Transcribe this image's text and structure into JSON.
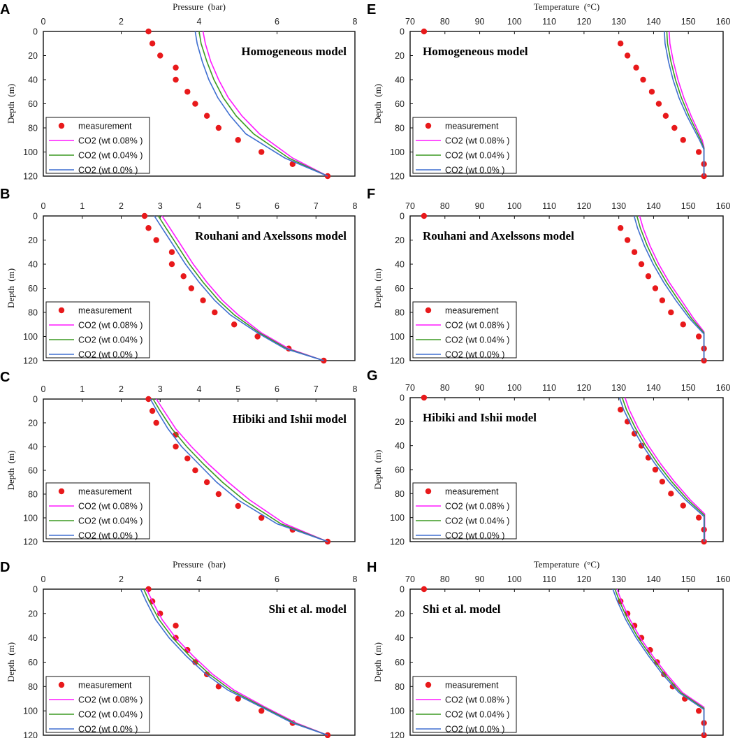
{
  "figure": {
    "series_styles": [
      {
        "name": "measurement",
        "color": "#e8191b",
        "kind": "points"
      },
      {
        "name": "CO2 (wt 0.08% )",
        "color": "#ff19ff",
        "kind": "line"
      },
      {
        "name": "CO2 (wt 0.04% )",
        "color": "#3c9a22",
        "kind": "line"
      },
      {
        "name": "CO2 (wt 0.0% )",
        "color": "#3f6fd1",
        "kind": "line"
      }
    ]
  },
  "chart_data": [
    {
      "panel": "A",
      "type": "scatter+line",
      "title": "Homogeneous model",
      "xlabel": "Pressure  (bar)",
      "ylabel": "Depth  (m)",
      "xlim": [
        0,
        8
      ],
      "xticks": [
        0,
        2,
        4,
        6,
        8
      ],
      "ylim": [
        0,
        120
      ],
      "yticks": [
        0,
        20,
        40,
        60,
        80,
        100,
        120
      ],
      "series": [
        {
          "name": "measurement",
          "x": [
            2.7,
            2.8,
            3.0,
            3.4,
            3.4,
            3.7,
            3.9,
            4.2,
            4.5,
            5.0,
            5.6,
            6.4,
            7.3
          ],
          "y": [
            0,
            10,
            20,
            30,
            40,
            50,
            60,
            70,
            80,
            90,
            100,
            110,
            120
          ]
        },
        {
          "name": "CO2 (wt 0.08% )",
          "x": [
            4.1,
            4.16,
            4.3,
            4.5,
            4.75,
            5.1,
            5.55,
            6.4,
            7.3
          ],
          "y": [
            0,
            10,
            25,
            40,
            55,
            70,
            85,
            105,
            120
          ]
        },
        {
          "name": "CO2 (wt 0.04% )",
          "x": [
            4.0,
            4.05,
            4.2,
            4.38,
            4.62,
            4.95,
            5.4,
            6.3,
            7.3
          ],
          "y": [
            0,
            10,
            25,
            40,
            55,
            70,
            85,
            105,
            120
          ]
        },
        {
          "name": "CO2 (wt 0.0% )",
          "x": [
            3.9,
            3.95,
            4.08,
            4.25,
            4.48,
            4.8,
            5.2,
            6.2,
            7.3
          ],
          "y": [
            0,
            10,
            25,
            40,
            55,
            70,
            85,
            105,
            120
          ]
        }
      ]
    },
    {
      "panel": "B",
      "type": "scatter+line",
      "title": "Rouhani and Axelssons model",
      "xlabel": "",
      "ylabel": "Depth  (m)",
      "xlim": [
        0,
        8
      ],
      "xticks": [
        0,
        1,
        2,
        3,
        4,
        5,
        6,
        7,
        8
      ],
      "ylim": [
        0,
        120
      ],
      "yticks": [
        0,
        20,
        40,
        60,
        80,
        100,
        120
      ],
      "series": [
        {
          "name": "measurement",
          "x": [
            2.6,
            2.7,
            2.9,
            3.3,
            3.3,
            3.6,
            3.8,
            4.1,
            4.4,
            4.9,
            5.5,
            6.3,
            7.2
          ],
          "y": [
            0,
            10,
            20,
            30,
            40,
            50,
            60,
            70,
            80,
            90,
            100,
            110,
            120
          ]
        },
        {
          "name": "CO2 (wt 0.08% )",
          "x": [
            3.05,
            3.25,
            3.55,
            3.85,
            4.2,
            4.6,
            5.0,
            5.6,
            6.3,
            7.2
          ],
          "y": [
            0,
            10,
            25,
            40,
            55,
            70,
            82,
            97,
            110,
            120
          ]
        },
        {
          "name": "CO2 (wt 0.04% )",
          "x": [
            2.95,
            3.15,
            3.45,
            3.75,
            4.1,
            4.5,
            4.9,
            5.55,
            6.25,
            7.2
          ],
          "y": [
            0,
            10,
            25,
            40,
            55,
            70,
            82,
            97,
            110,
            120
          ]
        },
        {
          "name": "CO2 (wt 0.0% )",
          "x": [
            2.85,
            3.05,
            3.35,
            3.65,
            4.0,
            4.4,
            4.8,
            5.5,
            6.2,
            7.2
          ],
          "y": [
            0,
            10,
            25,
            40,
            55,
            70,
            82,
            97,
            110,
            120
          ]
        }
      ]
    },
    {
      "panel": "C",
      "type": "scatter+line",
      "title": "Hibiki and Ishii model",
      "xlabel": "",
      "ylabel": "Depth  (m)",
      "xlim": [
        0,
        8
      ],
      "xticks": [
        0,
        1,
        2,
        3,
        4,
        5,
        6,
        7,
        8
      ],
      "ylim": [
        0,
        120
      ],
      "yticks": [
        0,
        20,
        40,
        60,
        80,
        100,
        120
      ],
      "series": [
        {
          "name": "measurement",
          "x": [
            2.7,
            2.8,
            2.9,
            3.4,
            3.4,
            3.7,
            3.9,
            4.2,
            4.5,
            5.0,
            5.6,
            6.4,
            7.3
          ],
          "y": [
            0,
            10,
            20,
            30,
            40,
            50,
            60,
            70,
            80,
            90,
            100,
            110,
            120
          ]
        },
        {
          "name": "CO2 (wt 0.08% )",
          "x": [
            2.9,
            3.1,
            3.4,
            3.8,
            4.25,
            4.75,
            5.3,
            6.2,
            7.3
          ],
          "y": [
            0,
            10,
            25,
            40,
            55,
            70,
            85,
            105,
            120
          ]
        },
        {
          "name": "CO2 (wt 0.04% )",
          "x": [
            2.82,
            3.0,
            3.3,
            3.68,
            4.12,
            4.6,
            5.15,
            6.1,
            7.3
          ],
          "y": [
            0,
            10,
            25,
            40,
            55,
            70,
            85,
            105,
            120
          ]
        },
        {
          "name": "CO2 (wt 0.0% )",
          "x": [
            2.75,
            2.92,
            3.2,
            3.55,
            4.0,
            4.45,
            5.0,
            6.0,
            7.3
          ],
          "y": [
            0,
            10,
            25,
            40,
            55,
            70,
            85,
            105,
            120
          ]
        }
      ]
    },
    {
      "panel": "D",
      "type": "scatter+line",
      "title": "Shi et al. model",
      "xlabel": "Pressure  (bar)",
      "ylabel": "Depth  (m)",
      "xlim": [
        0,
        8
      ],
      "xticks": [
        0,
        2,
        4,
        6,
        8
      ],
      "ylim": [
        0,
        120
      ],
      "yticks": [
        0,
        20,
        40,
        60,
        80,
        100,
        120
      ],
      "series": [
        {
          "name": "measurement",
          "x": [
            2.7,
            2.8,
            3.0,
            3.4,
            3.4,
            3.7,
            3.9,
            4.2,
            4.5,
            5.0,
            5.6,
            6.4,
            7.3
          ],
          "y": [
            0,
            10,
            20,
            30,
            40,
            50,
            60,
            70,
            80,
            90,
            100,
            110,
            120
          ]
        },
        {
          "name": "CO2 (wt 0.08% )",
          "x": [
            2.65,
            2.8,
            3.05,
            3.4,
            3.85,
            4.35,
            4.9,
            5.7,
            6.5,
            7.3
          ],
          "y": [
            0,
            10,
            25,
            40,
            55,
            70,
            83,
            97,
            110,
            120
          ]
        },
        {
          "name": "CO2 (wt 0.04% )",
          "x": [
            2.58,
            2.72,
            2.97,
            3.32,
            3.76,
            4.27,
            4.82,
            5.65,
            6.45,
            7.3
          ],
          "y": [
            0,
            10,
            25,
            40,
            55,
            70,
            83,
            97,
            110,
            120
          ]
        },
        {
          "name": "CO2 (wt 0.0% )",
          "x": [
            2.5,
            2.64,
            2.88,
            3.23,
            3.67,
            4.18,
            4.74,
            5.6,
            6.4,
            7.3
          ],
          "y": [
            0,
            10,
            25,
            40,
            55,
            70,
            83,
            97,
            110,
            120
          ]
        }
      ]
    },
    {
      "panel": "E",
      "type": "scatter+line",
      "title": "Homogeneous model",
      "xlabel": "Temperature  (°C)",
      "ylabel": "Depth  (m)",
      "xlim": [
        70,
        160
      ],
      "xticks": [
        70,
        80,
        90,
        100,
        110,
        120,
        130,
        140,
        150,
        160
      ],
      "ylim": [
        0,
        120
      ],
      "yticks": [
        0,
        20,
        40,
        60,
        80,
        100,
        120
      ],
      "series": [
        {
          "name": "measurement",
          "x": [
            74,
            130.5,
            132.5,
            135,
            137,
            139.5,
            141.5,
            143.5,
            146,
            148.5,
            153,
            154.5,
            154.5
          ],
          "y": [
            0,
            10,
            20,
            30,
            40,
            50,
            60,
            70,
            80,
            90,
            100,
            110,
            120
          ]
        },
        {
          "name": "CO2 (wt 0.08% )",
          "x": [
            144.5,
            144.7,
            145.7,
            147,
            148.7,
            150.8,
            154,
            154.5,
            154.5
          ],
          "y": [
            0,
            10,
            25,
            40,
            55,
            70,
            90,
            96,
            120
          ]
        },
        {
          "name": "CO2 (wt 0.04% )",
          "x": [
            143.8,
            144,
            145,
            146.3,
            148,
            150.2,
            153.6,
            154.5,
            154.5
          ],
          "y": [
            0,
            10,
            25,
            40,
            55,
            70,
            90,
            97,
            120
          ]
        },
        {
          "name": "CO2 (wt 0.0% )",
          "x": [
            143.1,
            143.3,
            144.3,
            145.6,
            147.3,
            149.6,
            153.2,
            154.5,
            154.5
          ],
          "y": [
            0,
            10,
            25,
            40,
            55,
            70,
            90,
            98,
            120
          ]
        }
      ]
    },
    {
      "panel": "F",
      "type": "scatter+line",
      "title": "Rouhani and Axelssons model",
      "xlabel": "",
      "ylabel": "Depth  (m)",
      "xlim": [
        70,
        160
      ],
      "xticks": [
        70,
        80,
        90,
        100,
        110,
        120,
        130,
        140,
        150,
        160
      ],
      "ylim": [
        0,
        120
      ],
      "yticks": [
        0,
        20,
        40,
        60,
        80,
        100,
        120
      ],
      "series": [
        {
          "name": "measurement",
          "x": [
            74,
            130.5,
            132.5,
            134.5,
            136.5,
            138.5,
            140.5,
            142.5,
            145,
            148.5,
            153,
            154.5,
            154.5
          ],
          "y": [
            0,
            10,
            20,
            30,
            40,
            50,
            60,
            70,
            80,
            90,
            100,
            110,
            120
          ]
        },
        {
          "name": "CO2 (wt 0.08% )",
          "x": [
            136,
            137,
            139,
            141.5,
            144.5,
            148,
            151.5,
            154.5,
            154.5
          ],
          "y": [
            0,
            10,
            25,
            40,
            55,
            70,
            85,
            96,
            120
          ]
        },
        {
          "name": "CO2 (wt 0.04% )",
          "x": [
            135.2,
            136.2,
            138.2,
            140.7,
            143.7,
            147.2,
            150.9,
            154.5,
            154.5
          ],
          "y": [
            0,
            10,
            25,
            40,
            55,
            70,
            85,
            97,
            120
          ]
        },
        {
          "name": "CO2 (wt 0.0% )",
          "x": [
            134.4,
            135.4,
            137.4,
            139.9,
            142.9,
            146.4,
            150.3,
            154.5,
            154.5
          ],
          "y": [
            0,
            10,
            25,
            40,
            55,
            70,
            85,
            98,
            120
          ]
        }
      ]
    },
    {
      "panel": "G",
      "type": "scatter+line",
      "title": "Hibiki and Ishii model",
      "xlabel": "",
      "ylabel": "Depth  (m)",
      "xlim": [
        70,
        160
      ],
      "xticks": [
        70,
        80,
        90,
        100,
        110,
        120,
        130,
        140,
        150,
        160
      ],
      "ylim": [
        0,
        120
      ],
      "yticks": [
        0,
        20,
        40,
        60,
        80,
        100,
        120
      ],
      "series": [
        {
          "name": "measurement",
          "x": [
            74,
            130.5,
            132.5,
            134.5,
            136.5,
            138.5,
            140.5,
            142.5,
            145,
            148.5,
            153,
            154.5,
            154.5
          ],
          "y": [
            0,
            10,
            20,
            30,
            40,
            50,
            60,
            70,
            80,
            90,
            100,
            110,
            120
          ]
        },
        {
          "name": "CO2 (wt 0.08% )",
          "x": [
            131.8,
            133,
            135.5,
            138.5,
            142,
            146,
            150.5,
            154.7,
            154.7
          ],
          "y": [
            0,
            10,
            25,
            40,
            55,
            70,
            85,
            97,
            120
          ]
        },
        {
          "name": "CO2 (wt 0.04% )",
          "x": [
            131,
            132.2,
            134.7,
            137.7,
            141.2,
            145.2,
            149.8,
            154.6,
            154.6
          ],
          "y": [
            0,
            10,
            25,
            40,
            55,
            70,
            85,
            98,
            120
          ]
        },
        {
          "name": "CO2 (wt 0.0% )",
          "x": [
            130.2,
            131.4,
            133.9,
            136.9,
            140.4,
            144.4,
            149.1,
            154.5,
            154.5
          ],
          "y": [
            0,
            10,
            25,
            40,
            55,
            70,
            85,
            99,
            120
          ]
        }
      ]
    },
    {
      "panel": "H",
      "type": "scatter+line",
      "title": "Shi et al. model",
      "xlabel": "Temperature  (°C)",
      "ylabel": "Depth  (m)",
      "xlim": [
        70,
        160
      ],
      "xticks": [
        70,
        80,
        90,
        100,
        110,
        120,
        130,
        140,
        150,
        160
      ],
      "ylim": [
        0,
        120
      ],
      "yticks": [
        0,
        20,
        40,
        60,
        80,
        100,
        120
      ],
      "series": [
        {
          "name": "measurement",
          "x": [
            74,
            130.5,
            132.5,
            134.5,
            136.5,
            139,
            141,
            143,
            145.5,
            149,
            153,
            154.5,
            154.5
          ],
          "y": [
            0,
            10,
            20,
            30,
            40,
            50,
            60,
            70,
            80,
            90,
            100,
            110,
            120
          ]
        },
        {
          "name": "CO2 (wt 0.08% )",
          "x": [
            129.5,
            130.8,
            133.2,
            136.2,
            139.8,
            143.8,
            148.3,
            154.5,
            154.5
          ],
          "y": [
            0,
            10,
            25,
            40,
            55,
            70,
            85,
            97,
            120
          ]
        },
        {
          "name": "CO2 (wt 0.04% )",
          "x": [
            128.9,
            130.2,
            132.6,
            135.6,
            139.2,
            143.2,
            147.8,
            154.5,
            154.5
          ],
          "y": [
            0,
            10,
            25,
            40,
            55,
            70,
            85,
            98,
            120
          ]
        },
        {
          "name": "CO2 (wt 0.0% )",
          "x": [
            128.3,
            129.6,
            132,
            135,
            138.6,
            142.6,
            147.3,
            154.5,
            154.5
          ],
          "y": [
            0,
            10,
            25,
            40,
            55,
            70,
            85,
            99,
            120
          ]
        }
      ]
    }
  ]
}
